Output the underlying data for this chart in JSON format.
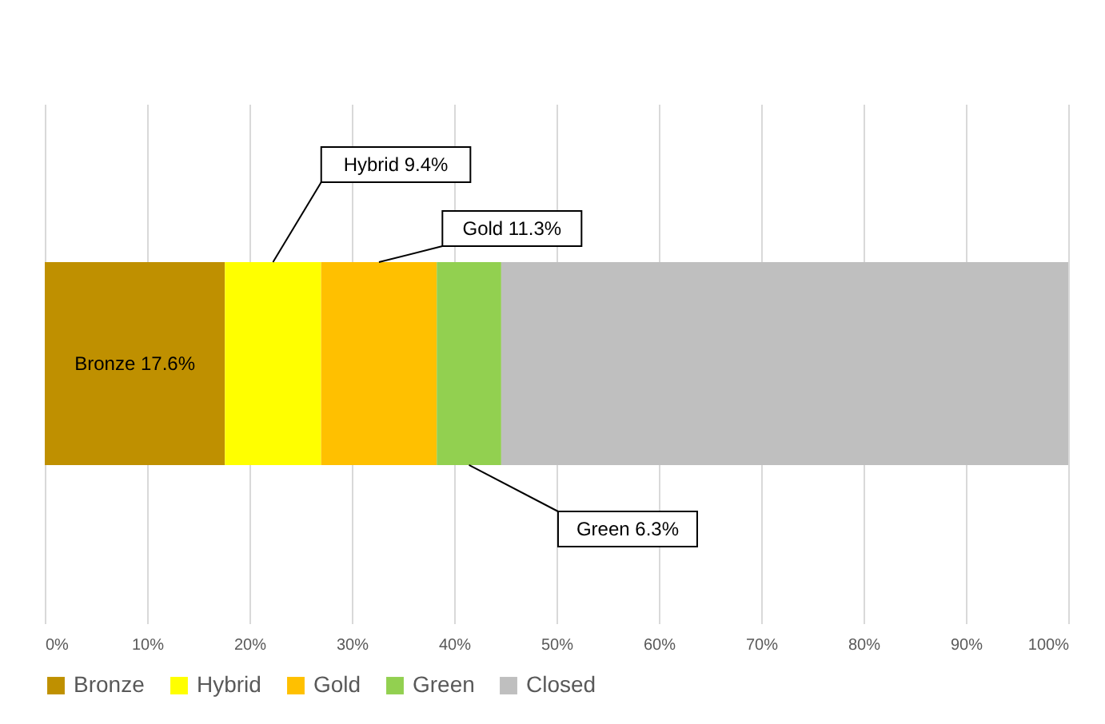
{
  "chart_data": {
    "type": "bar",
    "orientation": "horizontal",
    "stacked": true,
    "categories": [
      null
    ],
    "series": [
      {
        "name": "Bronze",
        "color": "#bf9000",
        "values": [
          17.6
        ],
        "value_labels": [
          "Bronze 17.6%"
        ]
      },
      {
        "name": "Hybrid",
        "color": "#ffff00",
        "values": [
          9.4
        ],
        "value_labels": [
          "Hybrid 9.4%"
        ]
      },
      {
        "name": "Gold",
        "color": "#ffc000",
        "values": [
          11.3
        ],
        "value_labels": [
          "Gold 11.3%"
        ]
      },
      {
        "name": "Green",
        "color": "#92d050",
        "values": [
          6.3
        ],
        "value_labels": [
          "Green 6.3%"
        ]
      },
      {
        "name": "Closed",
        "color": "#bfbfbf",
        "values": [
          55.4
        ],
        "value_labels": [
          null
        ]
      }
    ],
    "xlim": [
      0,
      100
    ],
    "xticks": [
      {
        "value": 0,
        "label": "0%"
      },
      {
        "value": 10,
        "label": "10%"
      },
      {
        "value": 20,
        "label": "20%"
      },
      {
        "value": 30,
        "label": "30%"
      },
      {
        "value": 40,
        "label": "40%"
      },
      {
        "value": 50,
        "label": "50%"
      },
      {
        "value": 60,
        "label": "60%"
      },
      {
        "value": 70,
        "label": "70%"
      },
      {
        "value": 80,
        "label": "80%"
      },
      {
        "value": 90,
        "label": "90%"
      },
      {
        "value": 100,
        "label": "100%"
      }
    ],
    "grid": "x",
    "legend": "bottom"
  }
}
